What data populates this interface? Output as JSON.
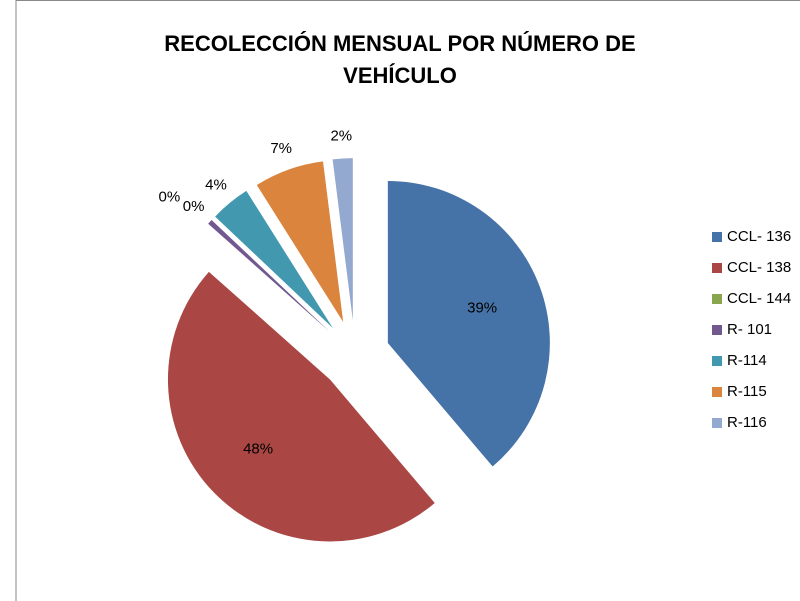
{
  "chart_data": {
    "type": "pie",
    "title": "RECOLECCIÓN MENSUAL POR NÚMERO DE VEHÍCULO",
    "categories": [
      "CCL- 136",
      "CCL- 138",
      "CCL- 144",
      "R- 101",
      "R-114",
      "R-115",
      "R-116"
    ],
    "values": [
      39,
      48,
      0,
      0.5,
      4,
      7,
      2
    ],
    "value_labels": [
      "39%",
      "48%",
      "0%",
      "0%",
      "4%",
      "7%",
      "2%"
    ],
    "colors": [
      "#4572a7",
      "#aa4643",
      "#89a54e",
      "#71588f",
      "#4198af",
      "#db843d",
      "#93a9cf"
    ],
    "legend": "right"
  }
}
